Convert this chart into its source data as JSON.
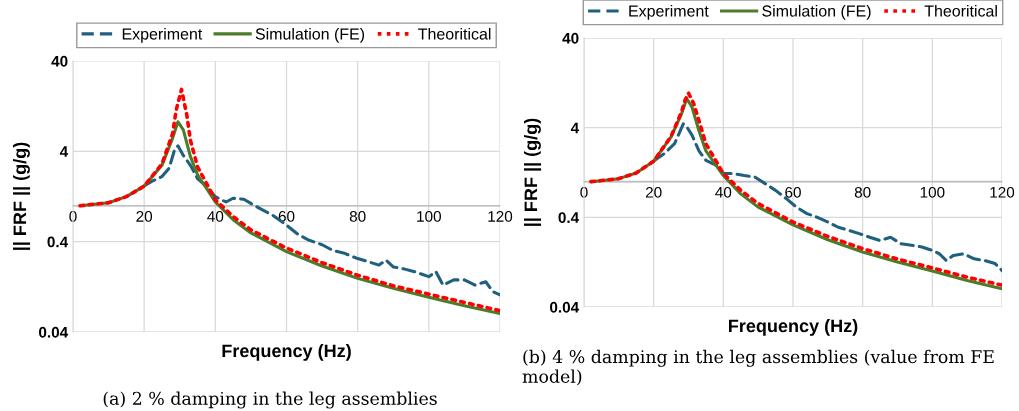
{
  "chart_data": [
    {
      "type": "line",
      "xlabel": "Frequency (Hz)",
      "ylabel": "|| FRF || (g/g)",
      "log": "y",
      "xlim": [
        0,
        120
      ],
      "xticks": [
        0,
        20,
        40,
        60,
        80,
        100,
        120
      ],
      "ylim": [
        0.04,
        40
      ],
      "yticks": [
        0.04,
        0.4,
        4,
        40
      ],
      "grid": true,
      "legend": "top",
      "ref_lines": [
        {
          "axis": "y",
          "value": 1,
          "color": "#bfbfbf"
        }
      ],
      "annotations": [
        "(a) 2 % damping in the leg assemblies"
      ],
      "series": [
        {
          "name": "Experiment",
          "color": "#1f5f7f",
          "line_style": "dashed",
          "x": [
            20,
            22,
            25,
            27,
            28.5,
            29.5,
            31,
            33,
            35,
            37,
            40,
            43,
            45,
            48,
            50,
            53,
            56,
            60,
            63,
            66,
            70,
            73,
            76,
            80,
            83,
            86,
            88,
            90,
            93,
            96,
            100,
            102,
            104,
            107,
            110,
            113,
            116,
            118,
            120
          ],
          "values": [
            1.65,
            1.85,
            2.1,
            2.6,
            4.1,
            4.6,
            3.6,
            2.8,
            2.0,
            1.7,
            1.26,
            1.1,
            1.21,
            1.18,
            1.06,
            0.91,
            0.79,
            0.61,
            0.49,
            0.42,
            0.37,
            0.32,
            0.3,
            0.26,
            0.24,
            0.22,
            0.25,
            0.21,
            0.2,
            0.186,
            0.164,
            0.186,
            0.132,
            0.151,
            0.151,
            0.132,
            0.144,
            0.112,
            0.103
          ]
        },
        {
          "name": "Simulation (FE)",
          "color": "#4a7c2a",
          "line_style": "solid",
          "x": [
            2,
            10,
            15,
            20,
            25,
            28,
            29.5,
            31,
            33,
            35,
            40,
            45,
            50,
            60,
            70,
            80,
            90,
            100,
            110,
            120
          ],
          "values": [
            1.0,
            1.08,
            1.26,
            1.65,
            2.8,
            5.6,
            8.5,
            6.9,
            3.5,
            2.2,
            1.1,
            0.7,
            0.5,
            0.31,
            0.215,
            0.157,
            0.122,
            0.097,
            0.078,
            0.064
          ]
        },
        {
          "name": "Theoritical",
          "color": "#ff0000",
          "line_style": "dotted",
          "x": [
            2,
            10,
            15,
            20,
            25,
            28,
            29,
            30.5,
            32,
            33,
            35,
            40,
            45,
            50,
            60,
            70,
            80,
            90,
            100,
            110,
            120
          ],
          "values": [
            1.0,
            1.08,
            1.26,
            1.65,
            2.9,
            6.3,
            11.5,
            19.4,
            10,
            5.3,
            2.7,
            1.16,
            0.76,
            0.54,
            0.34,
            0.234,
            0.17,
            0.13,
            0.105,
            0.085,
            0.069
          ]
        }
      ]
    },
    {
      "type": "line",
      "xlabel": "Frequency (Hz)",
      "ylabel": "|| FRF || (g/g)",
      "log": "y",
      "xlim": [
        0,
        120
      ],
      "xticks": [
        0,
        20,
        40,
        60,
        80,
        100,
        120
      ],
      "ylim": [
        0.04,
        40
      ],
      "yticks": [
        0.04,
        0.4,
        4,
        40
      ],
      "grid": true,
      "legend": "top",
      "ref_lines": [
        {
          "axis": "y",
          "value": 1,
          "color": "#bfbfbf"
        }
      ],
      "annotations": [
        "(b) 4 % damping in the leg assemblies (value from FE model)"
      ],
      "series": [
        {
          "name": "Experiment",
          "color": "#1f5f7f",
          "line_style": "dashed",
          "x": [
            20,
            23,
            26,
            28.5,
            29.5,
            31,
            33,
            35,
            38,
            40,
            43,
            46,
            49,
            52,
            55,
            58,
            61,
            64,
            67,
            70,
            73,
            76,
            79,
            82,
            85,
            88,
            91,
            94,
            97,
            100,
            102,
            104,
            106,
            109,
            112,
            115,
            118,
            120
          ],
          "values": [
            1.7,
            2.05,
            2.65,
            4.4,
            4.1,
            3.3,
            2.2,
            1.73,
            1.52,
            1.23,
            1.23,
            1.17,
            1.13,
            0.95,
            0.8,
            0.65,
            0.52,
            0.44,
            0.4,
            0.355,
            0.31,
            0.286,
            0.263,
            0.24,
            0.22,
            0.24,
            0.203,
            0.195,
            0.187,
            0.171,
            0.157,
            0.132,
            0.15,
            0.157,
            0.138,
            0.132,
            0.122,
            0.102
          ]
        },
        {
          "name": "Simulation (FE)",
          "color": "#4a7c2a",
          "line_style": "solid",
          "x": [
            2,
            10,
            15,
            20,
            25,
            28,
            29.5,
            31,
            33,
            35,
            40,
            45,
            50,
            60,
            70,
            80,
            90,
            100,
            110,
            120
          ],
          "values": [
            1.0,
            1.08,
            1.25,
            1.69,
            3.15,
            5.7,
            8.4,
            6.8,
            3.7,
            2.2,
            1.17,
            0.73,
            0.52,
            0.33,
            0.225,
            0.164,
            0.127,
            0.101,
            0.079,
            0.064
          ]
        },
        {
          "name": "Theoritical",
          "color": "#ff0000",
          "line_style": "dotted",
          "x": [
            2,
            10,
            15,
            20,
            25,
            28,
            29,
            30,
            31.5,
            33,
            35,
            40,
            45,
            50,
            60,
            70,
            80,
            90,
            100,
            110,
            120
          ],
          "values": [
            1.0,
            1.08,
            1.25,
            1.69,
            3.2,
            6.0,
            8.1,
            9.7,
            7.4,
            4.8,
            2.65,
            1.23,
            0.8,
            0.57,
            0.355,
            0.245,
            0.179,
            0.137,
            0.109,
            0.086,
            0.07
          ]
        }
      ]
    }
  ]
}
